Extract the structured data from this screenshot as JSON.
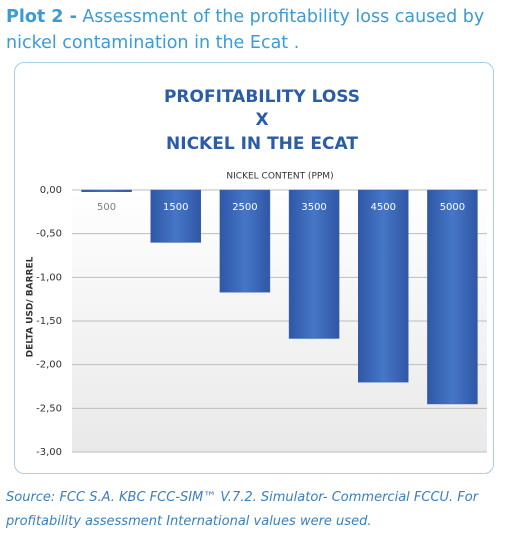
{
  "caption": {
    "label": "Plot 2 -",
    "text": "Assessment of the profitability loss caused by nickel contamination in the Ecat ."
  },
  "source": "Source: FCC S.A.  KBC FCC-SIM™  V.7.2. Simulator- Commercial FCCU. For profitability assessment International values were used.",
  "chart_data": {
    "type": "bar",
    "title": [
      "PROFITABILITY LOSS",
      "X",
      "NICKEL IN THE ECAT"
    ],
    "xlabel": "NICKEL CONTENT (PPM)",
    "ylabel": "DELTA USD/ BARREL",
    "categories": [
      "500",
      "1500",
      "2500",
      "3500",
      "4500",
      "5000"
    ],
    "values": [
      -0.02,
      -0.6,
      -1.17,
      -1.7,
      -2.2,
      -2.45
    ],
    "color": "#3461b5",
    "ylim": [
      0,
      -3
    ],
    "yticks": [
      {
        "value": 0,
        "label": "0,00"
      },
      {
        "value": -0.5,
        "label": "-0,50"
      },
      {
        "value": -1,
        "label": "-1,00"
      },
      {
        "value": -1.5,
        "label": "-1,50"
      },
      {
        "value": -2,
        "label": "-2,00"
      },
      {
        "value": -2.5,
        "label": "-2,50"
      },
      {
        "value": -3,
        "label": "-3,00"
      }
    ],
    "grid": true
  }
}
